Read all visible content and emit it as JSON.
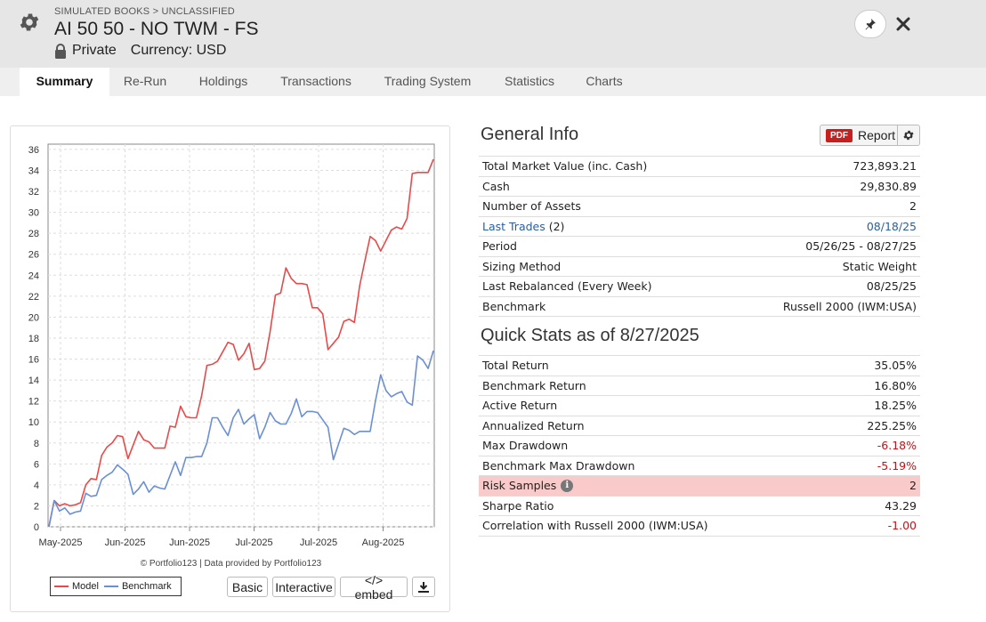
{
  "header": {
    "breadcrumb": "SIMULATED BOOKS > UNCLASSIFIED",
    "title": "AI 50 50 - NO TWM - FS",
    "visibility": "Private",
    "currency": "Currency: USD",
    "icons": [
      "gear-icon",
      "lock-icon",
      "pin-icon",
      "close-icon"
    ]
  },
  "tabs": [
    {
      "label": "Summary",
      "active": true
    },
    {
      "label": "Re-Run"
    },
    {
      "label": "Holdings"
    },
    {
      "label": "Transactions"
    },
    {
      "label": "Trading System"
    },
    {
      "label": "Statistics"
    },
    {
      "label": "Charts"
    }
  ],
  "chart": {
    "credit": "© Portfolio123 | Data provided by Portfolio123",
    "buttons": {
      "basic": "Basic",
      "interactive": "Interactive",
      "embed": "</> embed"
    },
    "colors": {
      "model": "#e84a4a",
      "benchmark": "#6b8fd4"
    }
  },
  "chart_data": {
    "type": "line",
    "x_tick_labels": [
      "May-2025",
      "Jun-2025",
      "Jun-2025",
      "Jul-2025",
      "Jul-2025",
      "Aug-2025"
    ],
    "y_ticks": [
      0,
      2,
      4,
      6,
      8,
      10,
      12,
      14,
      16,
      18,
      20,
      22,
      24,
      26,
      28,
      30,
      32,
      34,
      36
    ],
    "ylim": [
      0,
      36.5
    ],
    "grid": true,
    "legend": "bottom-left",
    "series": [
      {
        "name": "Model",
        "values": [
          0,
          2.5,
          2.0,
          2.2,
          2.0,
          2.1,
          2.3,
          4.0,
          4.6,
          4.5,
          6.8,
          7.6,
          8.0,
          8.7,
          8.6,
          6.5,
          7.8,
          9.1,
          8.3,
          8.1,
          7.5,
          7.5,
          7.5,
          9.6,
          9.5,
          11.5,
          10.5,
          10.4,
          10.4,
          12.5,
          15.4,
          15.5,
          15.8,
          16.7,
          17.6,
          17.4,
          15.9,
          16.5,
          17.5,
          15.0,
          15.1,
          15.8,
          18.6,
          22.1,
          22.3,
          24.7,
          23.7,
          23.2,
          23.2,
          23.1,
          20.9,
          20.9,
          20.3,
          16.9,
          17.5,
          18.1,
          19.6,
          19.8,
          19.5,
          23.0,
          25.4,
          27.7,
          27.3,
          26.3,
          27.3,
          28.3,
          28.6,
          28.4,
          29.4,
          33.7,
          33.8,
          33.8,
          33.8,
          35.05
        ]
      },
      {
        "name": "Benchmark",
        "values": [
          0,
          2.5,
          1.5,
          1.8,
          1.2,
          1.4,
          1.5,
          3.2,
          2.9,
          3.0,
          4.5,
          4.9,
          5.2,
          5.9,
          5.5,
          5.0,
          3.1,
          3.6,
          4.3,
          3.3,
          3.9,
          3.7,
          3.6,
          4.9,
          6.2,
          4.9,
          6.6,
          6.6,
          6.7,
          6.7,
          8.0,
          10.4,
          10.4,
          9.5,
          8.7,
          10.4,
          11.2,
          9.8,
          10.3,
          10.7,
          8.4,
          9.5,
          10.9,
          10.1,
          9.8,
          9.8,
          10.8,
          12.2,
          10.5,
          11.0,
          11.0,
          10.9,
          10.2,
          9.5,
          6.4,
          7.9,
          9.4,
          9.2,
          8.8,
          9.1,
          9.1,
          9.1,
          12.0,
          14.5,
          13.0,
          12.4,
          12.7,
          12.9,
          11.9,
          11.6,
          16.3,
          15.9,
          15.1,
          16.8
        ]
      }
    ]
  },
  "general_info": {
    "title": "General Info",
    "report_label": "Report",
    "pdf_badge": "PDF",
    "rows": [
      {
        "label": "Total Market Value (inc. Cash)",
        "value": "723,893.21"
      },
      {
        "label": "Cash",
        "value": "29,830.89"
      },
      {
        "label": "Number of Assets",
        "value": "2"
      },
      {
        "label": "Last Trades",
        "suffix": " (2)",
        "value": "08/18/25"
      },
      {
        "label": "Period",
        "value": "05/26/25 - 08/27/25"
      },
      {
        "label": "Sizing Method",
        "value": "Static Weight"
      },
      {
        "label": "Last Rebalanced (Every Week)",
        "value": "08/25/25"
      },
      {
        "label": "Benchmark",
        "value": "Russell 2000 (IWM:USA)"
      }
    ]
  },
  "quick_stats": {
    "title": "Quick Stats as of 8/27/2025",
    "info_glyph": "i",
    "rows": [
      {
        "label": "Total Return",
        "value": "35.05%"
      },
      {
        "label": "Benchmark Return",
        "value": "16.80%"
      },
      {
        "label": "Active Return",
        "value": "18.25%"
      },
      {
        "label": "Annualized Return",
        "value": "225.25%"
      },
      {
        "label": "Max Drawdown",
        "value": "-6.18%"
      },
      {
        "label": "Benchmark Max Drawdown",
        "value": "-5.19%"
      },
      {
        "label": "Risk Samples",
        "value": "2"
      },
      {
        "label": "Sharpe Ratio",
        "value": "43.29"
      },
      {
        "label": "Correlation with Russell 2000 (IWM:USA)",
        "value": "-1.00"
      }
    ]
  }
}
